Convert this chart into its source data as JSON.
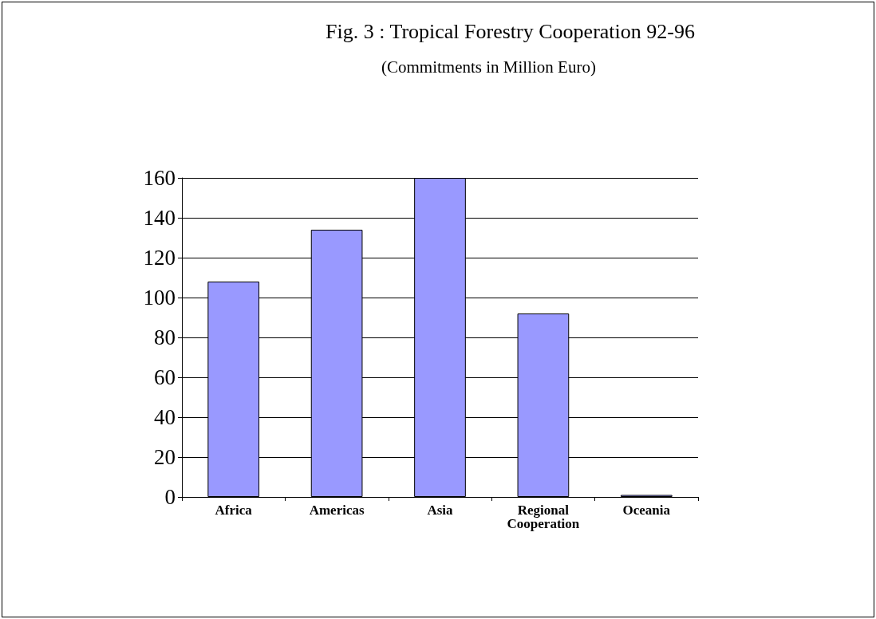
{
  "chart_data": {
    "type": "bar",
    "title": "Fig. 3 : Tropical Forestry Cooperation 92-96",
    "subtitle": "(Commitments in Million Euro)",
    "categories": [
      "Africa",
      "Americas",
      "Asia",
      "Regional\nCooperation",
      "Oceania"
    ],
    "values": [
      108,
      134,
      160,
      92,
      1
    ],
    "color": "#9999ff",
    "ylim": [
      0,
      160
    ],
    "yticks": [
      0,
      20,
      40,
      60,
      80,
      100,
      120,
      140,
      160
    ],
    "grid": "y"
  }
}
